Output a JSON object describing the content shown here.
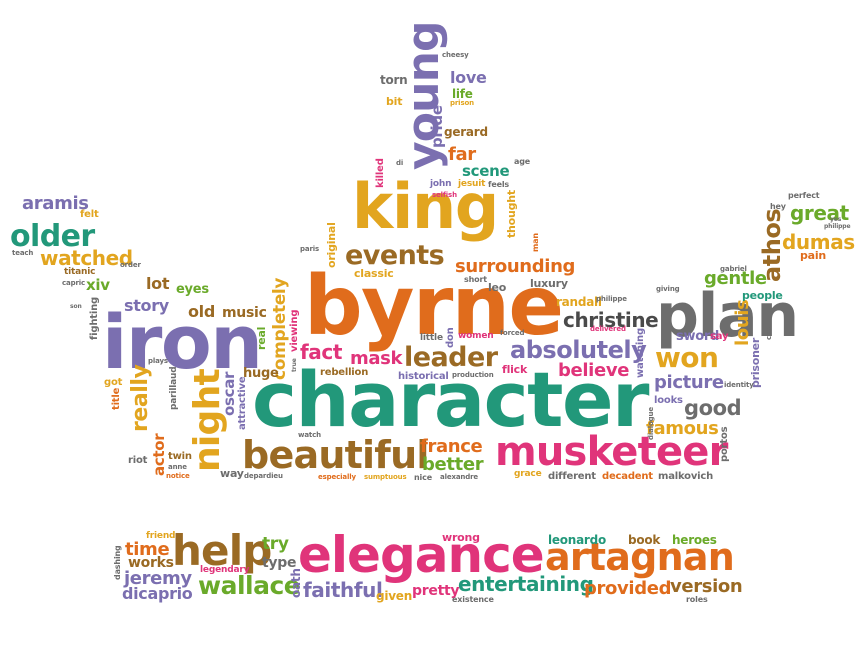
{
  "palette": {
    "purple": "#7b6fb0",
    "gold": "#e2a51f",
    "orange": "#e06c1c",
    "teal": "#22987a",
    "green": "#6aaa2a",
    "magenta": "#e0347a",
    "brown": "#9a6a24",
    "gray": "#6d6d6d",
    "darkgray": "#4a4a4a"
  },
  "words": [
    {
      "text": "character",
      "color": "teal"
    },
    {
      "text": "byrne",
      "color": "orange"
    },
    {
      "text": "king",
      "color": "gold"
    },
    {
      "text": "iron",
      "color": "purple"
    },
    {
      "text": "plan",
      "color": "gray"
    },
    {
      "text": "musketeer",
      "color": "magenta"
    },
    {
      "text": "elegance",
      "color": "magenta"
    },
    {
      "text": "artagnan",
      "color": "orange"
    },
    {
      "text": "beautiful",
      "color": "brown"
    },
    {
      "text": "young",
      "color": "purple"
    },
    {
      "text": "help",
      "color": "brown"
    },
    {
      "text": "events",
      "color": "brown"
    },
    {
      "text": "leader",
      "color": "brown"
    },
    {
      "text": "night",
      "color": "gold"
    },
    {
      "text": "older",
      "color": "teal"
    },
    {
      "text": "absolutely",
      "color": "purple"
    },
    {
      "text": "won",
      "color": "gold"
    },
    {
      "text": "wallace",
      "color": "green"
    },
    {
      "text": "entertaining",
      "color": "teal"
    },
    {
      "text": "faithful",
      "color": "purple"
    },
    {
      "text": "athos",
      "color": "brown"
    },
    {
      "text": "surrounding",
      "color": "orange"
    },
    {
      "text": "christine",
      "color": "darkgray"
    },
    {
      "text": "great",
      "color": "green"
    },
    {
      "text": "dumas",
      "color": "gold"
    },
    {
      "text": "aramis",
      "color": "purple"
    },
    {
      "text": "watched",
      "color": "gold"
    },
    {
      "text": "really",
      "color": "gold"
    },
    {
      "text": "fact",
      "color": "magenta"
    },
    {
      "text": "mask",
      "color": "magenta"
    },
    {
      "text": "believe",
      "color": "magenta"
    },
    {
      "text": "picture",
      "color": "purple"
    },
    {
      "text": "good",
      "color": "gray"
    },
    {
      "text": "famous",
      "color": "gold"
    },
    {
      "text": "france",
      "color": "orange"
    },
    {
      "text": "better",
      "color": "green"
    },
    {
      "text": "gentle",
      "color": "green"
    },
    {
      "text": "louis",
      "color": "gold"
    },
    {
      "text": "time",
      "color": "orange"
    },
    {
      "text": "jeremy",
      "color": "purple"
    },
    {
      "text": "version",
      "color": "brown"
    },
    {
      "text": "provided",
      "color": "orange"
    },
    {
      "text": "dicaprio",
      "color": "purple"
    },
    {
      "text": "works",
      "color": "brown"
    },
    {
      "text": "try",
      "color": "green"
    },
    {
      "text": "type",
      "color": "gray"
    },
    {
      "text": "pretty",
      "color": "magenta"
    },
    {
      "text": "given",
      "color": "gold"
    },
    {
      "text": "leonardo",
      "color": "teal"
    },
    {
      "text": "book",
      "color": "brown"
    },
    {
      "text": "heroes",
      "color": "green"
    },
    {
      "text": "wrong",
      "color": "magenta"
    },
    {
      "text": "oath",
      "color": "purple"
    },
    {
      "text": "legendary",
      "color": "magenta"
    },
    {
      "text": "friend",
      "color": "gold"
    },
    {
      "text": "dashing",
      "color": "gray"
    },
    {
      "text": "existence",
      "color": "gray"
    },
    {
      "text": "roles",
      "color": "gray"
    },
    {
      "text": "love",
      "color": "purple"
    },
    {
      "text": "pride",
      "color": "purple"
    },
    {
      "text": "life",
      "color": "green"
    },
    {
      "text": "gerard",
      "color": "brown"
    },
    {
      "text": "far",
      "color": "orange"
    },
    {
      "text": "scene",
      "color": "teal"
    },
    {
      "text": "torn",
      "color": "gray"
    },
    {
      "text": "bit",
      "color": "gold"
    },
    {
      "text": "cheesy",
      "color": "gray"
    },
    {
      "text": "prison",
      "color": "gold"
    },
    {
      "text": "killed",
      "color": "magenta"
    },
    {
      "text": "john",
      "color": "purple"
    },
    {
      "text": "jesuit",
      "color": "gold"
    },
    {
      "text": "feels",
      "color": "gray"
    },
    {
      "text": "age",
      "color": "gray"
    },
    {
      "text": "selfish",
      "color": "magenta"
    },
    {
      "text": "thought",
      "color": "gold"
    },
    {
      "text": "man",
      "color": "orange"
    },
    {
      "text": "classic",
      "color": "gold"
    },
    {
      "text": "leo",
      "color": "gray"
    },
    {
      "text": "luxury",
      "color": "gray"
    },
    {
      "text": "randall",
      "color": "gold"
    },
    {
      "text": "original",
      "color": "gold"
    },
    {
      "text": "paris",
      "color": "gray"
    },
    {
      "text": "lot",
      "color": "brown"
    },
    {
      "text": "eyes",
      "color": "green"
    },
    {
      "text": "story",
      "color": "purple"
    },
    {
      "text": "old",
      "color": "brown"
    },
    {
      "text": "music",
      "color": "brown"
    },
    {
      "text": "completely",
      "color": "gold"
    },
    {
      "text": "viewing",
      "color": "magenta"
    },
    {
      "text": "real",
      "color": "green"
    },
    {
      "text": "huge",
      "color": "brown"
    },
    {
      "text": "oscar",
      "color": "purple"
    },
    {
      "text": "attractive",
      "color": "purple"
    },
    {
      "text": "xiv",
      "color": "green"
    },
    {
      "text": "titanic",
      "color": "brown"
    },
    {
      "text": "capric",
      "color": "gray"
    },
    {
      "text": "teach",
      "color": "gray"
    },
    {
      "text": "felt",
      "color": "gold"
    },
    {
      "text": "fighting",
      "color": "gray"
    },
    {
      "text": "plays",
      "color": "gray"
    },
    {
      "text": "got",
      "color": "gold"
    },
    {
      "text": "title",
      "color": "orange"
    },
    {
      "text": "parillaud",
      "color": "gray"
    },
    {
      "text": "actor",
      "color": "orange"
    },
    {
      "text": "riot",
      "color": "gray"
    },
    {
      "text": "twin",
      "color": "brown"
    },
    {
      "text": "anne",
      "color": "gray"
    },
    {
      "text": "notice",
      "color": "orange"
    },
    {
      "text": "way",
      "color": "gray"
    },
    {
      "text": "depardieu",
      "color": "gray"
    },
    {
      "text": "rebellion",
      "color": "brown"
    },
    {
      "text": "historical",
      "color": "purple"
    },
    {
      "text": "production",
      "color": "gray"
    },
    {
      "text": "flick",
      "color": "magenta"
    },
    {
      "text": "little",
      "color": "gray"
    },
    {
      "text": "don",
      "color": "purple"
    },
    {
      "text": "women",
      "color": "magenta"
    },
    {
      "text": "forced",
      "color": "gray"
    },
    {
      "text": "especially",
      "color": "orange"
    },
    {
      "text": "sumptuous",
      "color": "gold"
    },
    {
      "text": "nice",
      "color": "gray"
    },
    {
      "text": "alexandre",
      "color": "gray"
    },
    {
      "text": "grace",
      "color": "gold"
    },
    {
      "text": "different",
      "color": "gray"
    },
    {
      "text": "decadent",
      "color": "orange"
    },
    {
      "text": "malkovich",
      "color": "gray"
    },
    {
      "text": "portos",
      "color": "gray"
    },
    {
      "text": "watching",
      "color": "purple"
    },
    {
      "text": "delivered",
      "color": "magenta"
    },
    {
      "text": "philippe",
      "color": "gray"
    },
    {
      "text": "giving",
      "color": "gray"
    },
    {
      "text": "sword",
      "color": "purple"
    },
    {
      "text": "say",
      "color": "magenta"
    },
    {
      "text": "cast",
      "color": "gray"
    },
    {
      "text": "prisoner",
      "color": "purple"
    },
    {
      "text": "people",
      "color": "teal"
    },
    {
      "text": "pain",
      "color": "orange"
    },
    {
      "text": "perfect",
      "color": "gray"
    },
    {
      "text": "hey",
      "color": "gray"
    },
    {
      "text": "yes",
      "color": "gray"
    },
    {
      "text": "philippe",
      "color": "gray"
    },
    {
      "text": "gabriel",
      "color": "gray"
    },
    {
      "text": "looks",
      "color": "purple"
    },
    {
      "text": "identity",
      "color": "gray"
    },
    {
      "text": "dialogue",
      "color": "gray"
    },
    {
      "text": "watch",
      "color": "gray"
    },
    {
      "text": "di",
      "color": "gray"
    },
    {
      "text": "true",
      "color": "gray"
    },
    {
      "text": "short",
      "color": "gray"
    },
    {
      "text": "order",
      "color": "gray"
    },
    {
      "text": "son",
      "color": "gray"
    }
  ]
}
